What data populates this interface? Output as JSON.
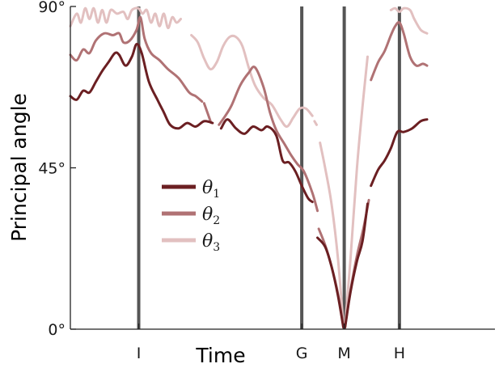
{
  "chart_data": {
    "type": "line",
    "xlabel": "Time",
    "ylabel": "Principal angle",
    "ylim": [
      0,
      90
    ],
    "xlim": [
      0,
      100
    ],
    "y_ticks": [
      {
        "value": 0,
        "label": "0°"
      },
      {
        "value": 45,
        "label": "45°"
      },
      {
        "value": 90,
        "label": "90°"
      }
    ],
    "events": [
      {
        "label": "I",
        "x": 16.1
      },
      {
        "label": "G",
        "x": 54.5
      },
      {
        "label": "M",
        "x": 64.5
      },
      {
        "label": "H",
        "x": 77.5
      }
    ],
    "legend_position": "center-left",
    "colors": {
      "theta1": "#6b1f22",
      "theta2": "#b07274",
      "theta3": "#e2c0c0",
      "event_line": "#555555",
      "axis": "#222222"
    },
    "series": [
      {
        "name": "θ1",
        "symbol": "θ",
        "subscript": "1",
        "color": "#6b1f22",
        "segments": [
          [
            [
              0.0,
              65.0
            ],
            [
              1.5,
              64.0
            ],
            [
              3.0,
              66.5
            ],
            [
              4.5,
              66.0
            ],
            [
              6.0,
              69.0
            ],
            [
              7.5,
              72.0
            ],
            [
              9.0,
              74.5
            ],
            [
              10.5,
              77.0
            ],
            [
              11.5,
              76.5
            ],
            [
              13.0,
              73.5
            ],
            [
              14.5,
              76.0
            ],
            [
              15.6,
              79.5
            ],
            [
              16.8,
              77.0
            ],
            [
              18.5,
              69.0
            ],
            [
              20.5,
              64.0
            ],
            [
              22.0,
              60.5
            ],
            [
              23.5,
              57.0
            ],
            [
              25.5,
              56.0
            ],
            [
              27.5,
              57.5
            ],
            [
              29.5,
              56.5
            ],
            [
              31.5,
              58.0
            ],
            [
              33.5,
              57.5
            ]
          ],
          [
            [
              35.5,
              56.0
            ],
            [
              37.0,
              58.5
            ],
            [
              39.0,
              56.0
            ],
            [
              41.0,
              54.5
            ],
            [
              43.0,
              56.5
            ],
            [
              45.0,
              55.5
            ],
            [
              46.5,
              56.5
            ],
            [
              48.5,
              54.0
            ],
            [
              50.0,
              47.0
            ],
            [
              51.5,
              46.5
            ],
            [
              53.0,
              44.0
            ],
            [
              54.5,
              40.0
            ],
            [
              56.0,
              36.5
            ],
            [
              57.0,
              35.5
            ]
          ],
          [
            [
              58.2,
              25.5
            ],
            [
              60.0,
              23.0
            ],
            [
              61.5,
              17.5
            ],
            [
              63.0,
              9.5
            ],
            [
              64.3,
              0.5
            ]
          ],
          [
            [
              64.7,
              0.5
            ],
            [
              66.0,
              10.5
            ],
            [
              67.5,
              19.0
            ],
            [
              68.8,
              24.5
            ],
            [
              70.0,
              35.0
            ]
          ],
          [
            [
              70.8,
              40.0
            ],
            [
              72.5,
              44.5
            ],
            [
              74.0,
              47.0
            ],
            [
              75.5,
              50.5
            ],
            [
              77.0,
              55.0
            ],
            [
              78.5,
              55.0
            ],
            [
              80.5,
              56.0
            ],
            [
              82.5,
              58.0
            ],
            [
              84.0,
              58.5
            ]
          ]
        ]
      },
      {
        "name": "θ2",
        "symbol": "θ",
        "subscript": "2",
        "color": "#b07274",
        "segments": [
          [
            [
              0.0,
              76.5
            ],
            [
              1.5,
              75.0
            ],
            [
              3.0,
              78.0
            ],
            [
              4.5,
              77.0
            ],
            [
              6.0,
              80.5
            ],
            [
              8.0,
              82.5
            ],
            [
              10.0,
              82.0
            ],
            [
              11.5,
              82.5
            ],
            [
              12.5,
              80.0
            ],
            [
              14.0,
              80.5
            ],
            [
              15.6,
              83.5
            ],
            [
              16.5,
              87.0
            ],
            [
              17.5,
              81.0
            ],
            [
              19.0,
              77.0
            ],
            [
              21.0,
              75.0
            ],
            [
              23.0,
              72.5
            ],
            [
              25.5,
              70.0
            ],
            [
              28.0,
              66.0
            ],
            [
              29.5,
              65.0
            ],
            [
              31.0,
              63.5
            ]
          ],
          [
            [
              31.5,
              63.0
            ],
            [
              33.0,
              58.0
            ]
          ],
          [
            [
              35.0,
              57.0
            ],
            [
              36.5,
              59.5
            ],
            [
              38.0,
              62.5
            ],
            [
              40.0,
              68.0
            ],
            [
              42.0,
              71.5
            ],
            [
              43.5,
              73.0
            ],
            [
              45.5,
              67.5
            ],
            [
              47.0,
              60.5
            ],
            [
              48.5,
              55.5
            ],
            [
              50.5,
              51.5
            ],
            [
              52.0,
              48.5
            ],
            [
              53.5,
              46.0
            ],
            [
              55.0,
              44.0
            ],
            [
              57.0,
              38.0
            ],
            [
              58.2,
              33.0
            ]
          ],
          [
            [
              58.5,
              28.0
            ],
            [
              60.0,
              23.5
            ],
            [
              61.5,
              17.5
            ],
            [
              63.0,
              10.0
            ],
            [
              64.3,
              0.8
            ]
          ],
          [
            [
              64.7,
              0.8
            ],
            [
              66.0,
              11.0
            ],
            [
              67.5,
              20.5
            ],
            [
              69.0,
              28.0
            ],
            [
              70.3,
              36.0
            ]
          ],
          [
            [
              70.8,
              69.5
            ],
            [
              72.5,
              74.5
            ],
            [
              74.0,
              77.5
            ],
            [
              75.5,
              82.0
            ],
            [
              76.5,
              84.5
            ],
            [
              77.5,
              85.5
            ],
            [
              78.5,
              82.5
            ],
            [
              80.0,
              76.0
            ],
            [
              81.5,
              73.5
            ],
            [
              83.0,
              74.0
            ],
            [
              84.0,
              73.5
            ]
          ]
        ]
      },
      {
        "name": "θ3",
        "symbol": "θ",
        "subscript": "3",
        "color": "#e2c0c0",
        "segments": [
          [
            [
              0.0,
              84.5
            ],
            [
              1.5,
              88.0
            ],
            [
              2.5,
              85.5
            ],
            [
              3.5,
              89.5
            ],
            [
              4.5,
              86.5
            ],
            [
              5.5,
              89.5
            ],
            [
              6.5,
              85.5
            ],
            [
              7.5,
              89.0
            ],
            [
              8.5,
              85.5
            ],
            [
              9.5,
              89.0
            ],
            [
              11.0,
              88.0
            ],
            [
              12.5,
              88.5
            ],
            [
              13.5,
              86.5
            ],
            [
              14.5,
              89.0
            ],
            [
              16.0,
              89.5
            ],
            [
              17.0,
              88.0
            ],
            [
              18.0,
              89.0
            ],
            [
              19.0,
              85.5
            ],
            [
              20.0,
              88.0
            ],
            [
              21.0,
              84.5
            ],
            [
              22.0,
              88.0
            ],
            [
              23.0,
              84.0
            ],
            [
              24.0,
              87.0
            ],
            [
              25.0,
              85.5
            ],
            [
              26.0,
              86.5
            ]
          ],
          [
            [
              28.5,
              82.0
            ],
            [
              30.0,
              80.0
            ],
            [
              31.5,
              75.5
            ],
            [
              33.0,
              72.5
            ],
            [
              34.5,
              74.5
            ],
            [
              36.0,
              79.0
            ],
            [
              37.5,
              81.5
            ],
            [
              39.0,
              81.5
            ],
            [
              40.5,
              79.0
            ],
            [
              42.0,
              73.0
            ],
            [
              43.5,
              68.0
            ],
            [
              45.5,
              64.5
            ],
            [
              47.5,
              62.5
            ],
            [
              49.5,
              58.5
            ],
            [
              51.0,
              56.5
            ],
            [
              52.5,
              59.0
            ],
            [
              54.0,
              61.5
            ],
            [
              55.5,
              61.5
            ],
            [
              57.0,
              59.5
            ]
          ],
          [
            [
              57.5,
              58.0
            ],
            [
              58.0,
              57.0
            ]
          ],
          [
            [
              58.8,
              52.0
            ],
            [
              60.0,
              45.0
            ],
            [
              61.5,
              35.0
            ],
            [
              63.0,
              20.0
            ],
            [
              64.3,
              1.0
            ]
          ],
          [
            [
              64.7,
              1.0
            ],
            [
              66.0,
              20.0
            ],
            [
              67.5,
              45.0
            ],
            [
              68.8,
              62.0
            ],
            [
              70.0,
              76.0
            ]
          ],
          [
            [
              75.5,
              89.0
            ],
            [
              76.5,
              89.5
            ],
            [
              77.5,
              88.5
            ],
            [
              78.5,
              89.5
            ],
            [
              80.0,
              89.0
            ],
            [
              81.0,
              86.5
            ],
            [
              82.5,
              83.5
            ],
            [
              84.0,
              82.5
            ]
          ]
        ]
      }
    ]
  }
}
